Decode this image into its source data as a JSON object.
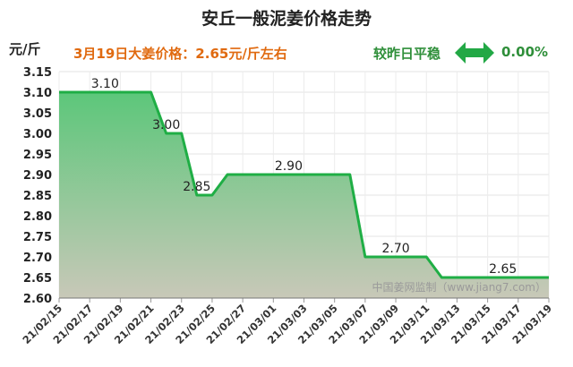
{
  "header": {
    "title": "安丘一般泥姜价格走势",
    "unit": "元/斤",
    "price_note": "3月19日大姜价格：2.65元/斤左右",
    "change_label": "较昨日平稳",
    "change_value": "0.00%",
    "change_icon": "double-arrow-icon"
  },
  "watermark": "中国姜网监制（www.jiang7.com）",
  "colors": {
    "line": "#1fae45",
    "fill_top": "#5cc77a",
    "fill_bottom": "#c8c8b8",
    "accent": "#e06a10"
  },
  "chart_data": {
    "type": "area",
    "title": "安丘一般泥姜价格走势",
    "ylabel": "元/斤",
    "ylim": [
      2.6,
      3.15
    ],
    "yticks": [
      "3.15",
      "3.10",
      "3.05",
      "3.00",
      "2.95",
      "2.90",
      "2.85",
      "2.80",
      "2.75",
      "2.70",
      "2.65",
      "2.60"
    ],
    "x_ticks": [
      "21/02/15",
      "21/02/17",
      "21/02/19",
      "21/02/21",
      "21/02/23",
      "21/02/25",
      "21/02/27",
      "21/03/01",
      "21/03/03",
      "21/03/05",
      "21/03/07",
      "21/03/09",
      "21/03/11",
      "21/03/13",
      "21/03/15",
      "21/03/17",
      "21/03/19"
    ],
    "x": [
      "21/02/15",
      "21/02/21",
      "21/02/22",
      "21/02/23",
      "21/02/24",
      "21/02/25",
      "21/02/26",
      "21/02/27",
      "21/03/06",
      "21/03/07",
      "21/03/11",
      "21/03/12",
      "21/03/19"
    ],
    "values": [
      3.1,
      3.1,
      3.0,
      3.0,
      2.85,
      2.85,
      2.9,
      2.9,
      2.9,
      2.7,
      2.7,
      2.65,
      2.65
    ],
    "data_labels": [
      {
        "x": "21/02/18",
        "value": "3.10"
      },
      {
        "x": "21/02/22",
        "value": "3.00"
      },
      {
        "x": "21/02/24",
        "value": "2.85"
      },
      {
        "x": "21/03/02",
        "value": "2.90"
      },
      {
        "x": "21/03/09",
        "value": "2.70"
      },
      {
        "x": "21/03/16",
        "value": "2.65"
      }
    ],
    "grid": true
  }
}
